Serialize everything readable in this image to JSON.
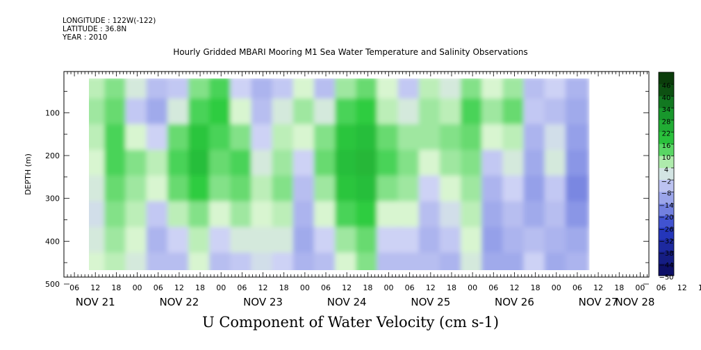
{
  "header": {
    "longitude": "LONGITUDE : 122W(-122)",
    "latitude": "LATITUDE : 36.8N",
    "year": "YEAR : 2010"
  },
  "chart_data": {
    "type": "heatmap",
    "title": "Hourly Gridded MBARI Mooring M1 Sea Water Temperature and Salinity Observations",
    "xlabel": "U Component of Water Velocity (cm s-1)",
    "ylabel": "DEPTH (m)",
    "y_ticks": [
      100,
      200,
      300,
      400,
      500
    ],
    "ylim": [
      500,
      20
    ],
    "x_hour_labels": [
      "06",
      "12",
      "18",
      "00",
      "06",
      "12",
      "18",
      "00",
      "06",
      "12",
      "18",
      "00",
      "06",
      "12",
      "18",
      "00",
      "06",
      "12",
      "18",
      "00",
      "06",
      "12",
      "18",
      "00",
      "06",
      "12",
      "18",
      "00",
      "06",
      "12",
      "18",
      "00"
    ],
    "x_day_labels": [
      "NOV 21",
      "NOV 22",
      "NOV 23",
      "NOV 24",
      "NOV 25",
      "NOV 26",
      "NOV 27",
      "NOV 28"
    ],
    "colorbar": {
      "levels": [
        46,
        40,
        34,
        28,
        22,
        16,
        10,
        4,
        -2,
        -8,
        -14,
        -20,
        -26,
        -32,
        -38,
        -44,
        -50
      ],
      "colors_high": "#0b3d0b",
      "colors_mid_pos": "#2ecc40",
      "colors_zero": "#d8f5d0",
      "colors_mid_neg": "#8a96e6",
      "colors_low": "#0a0a5a"
    },
    "data_summary": {
      "time_range": [
        "2010-11-21 12:00",
        "2010-11-27 06:00"
      ],
      "depth_range_m": [
        20,
        485
      ],
      "value_range_cm_s": [
        -20,
        25
      ],
      "dominant_pattern": "alternating vertical bands of eastward (positive, green) and westward (negative, blue) flow with strongest positive values near NOV 22 and NOV 24"
    },
    "field_samples": {
      "time_columns": [
        "2010-11-21 12:00",
        "2010-11-21 18:00",
        "2010-11-22 00:00",
        "2010-11-22 06:00",
        "2010-11-22 12:00",
        "2010-11-22 18:00",
        "2010-11-23 00:00",
        "2010-11-23 06:00",
        "2010-11-23 12:00",
        "2010-11-23 18:00",
        "2010-11-24 00:00",
        "2010-11-24 06:00",
        "2010-11-24 12:00",
        "2010-11-24 18:00",
        "2010-11-25 00:00",
        "2010-11-25 06:00",
        "2010-11-25 12:00",
        "2010-11-25 18:00",
        "2010-11-26 00:00",
        "2010-11-26 06:00",
        "2010-11-26 12:00",
        "2010-11-26 18:00",
        "2010-11-27 00:00",
        "2010-11-27 06:00"
      ],
      "depth_rows_m": [
        40,
        100,
        160,
        220,
        280,
        340,
        400,
        460
      ],
      "values": [
        [
          6,
          10,
          2,
          -6,
          -4,
          10,
          14,
          -2,
          -8,
          -4,
          4,
          -6,
          8,
          12,
          4,
          -4,
          6,
          2,
          10,
          4,
          8,
          -6,
          -2,
          -8
        ],
        [
          8,
          12,
          -4,
          -10,
          2,
          14,
          16,
          4,
          -6,
          2,
          8,
          2,
          14,
          16,
          6,
          2,
          8,
          6,
          14,
          8,
          12,
          -4,
          -6,
          -10
        ],
        [
          6,
          14,
          4,
          -2,
          12,
          18,
          14,
          10,
          -2,
          6,
          4,
          10,
          18,
          20,
          12,
          8,
          8,
          10,
          12,
          4,
          6,
          -8,
          0,
          -12
        ],
        [
          4,
          14,
          10,
          6,
          14,
          20,
          12,
          14,
          2,
          8,
          -2,
          12,
          20,
          22,
          14,
          10,
          4,
          8,
          10,
          -4,
          2,
          -10,
          2,
          -14
        ],
        [
          2,
          12,
          8,
          4,
          12,
          16,
          10,
          12,
          6,
          10,
          -6,
          8,
          18,
          20,
          10,
          8,
          -2,
          4,
          8,
          -8,
          -2,
          -12,
          -4,
          -16
        ],
        [
          0,
          10,
          6,
          -4,
          6,
          10,
          4,
          8,
          4,
          6,
          -8,
          4,
          14,
          16,
          4,
          4,
          -6,
          0,
          6,
          -10,
          -6,
          -10,
          -6,
          -14
        ],
        [
          2,
          8,
          4,
          -8,
          -2,
          6,
          -2,
          2,
          2,
          2,
          -10,
          -2,
          8,
          12,
          -2,
          -2,
          -8,
          -4,
          4,
          -12,
          -8,
          -6,
          -8,
          -10
        ],
        [
          4,
          6,
          2,
          -6,
          -6,
          4,
          -6,
          -4,
          0,
          -2,
          -8,
          -6,
          4,
          10,
          -6,
          -6,
          -6,
          -8,
          2,
          -10,
          -10,
          -2,
          -10,
          -8
        ]
      ]
    }
  }
}
